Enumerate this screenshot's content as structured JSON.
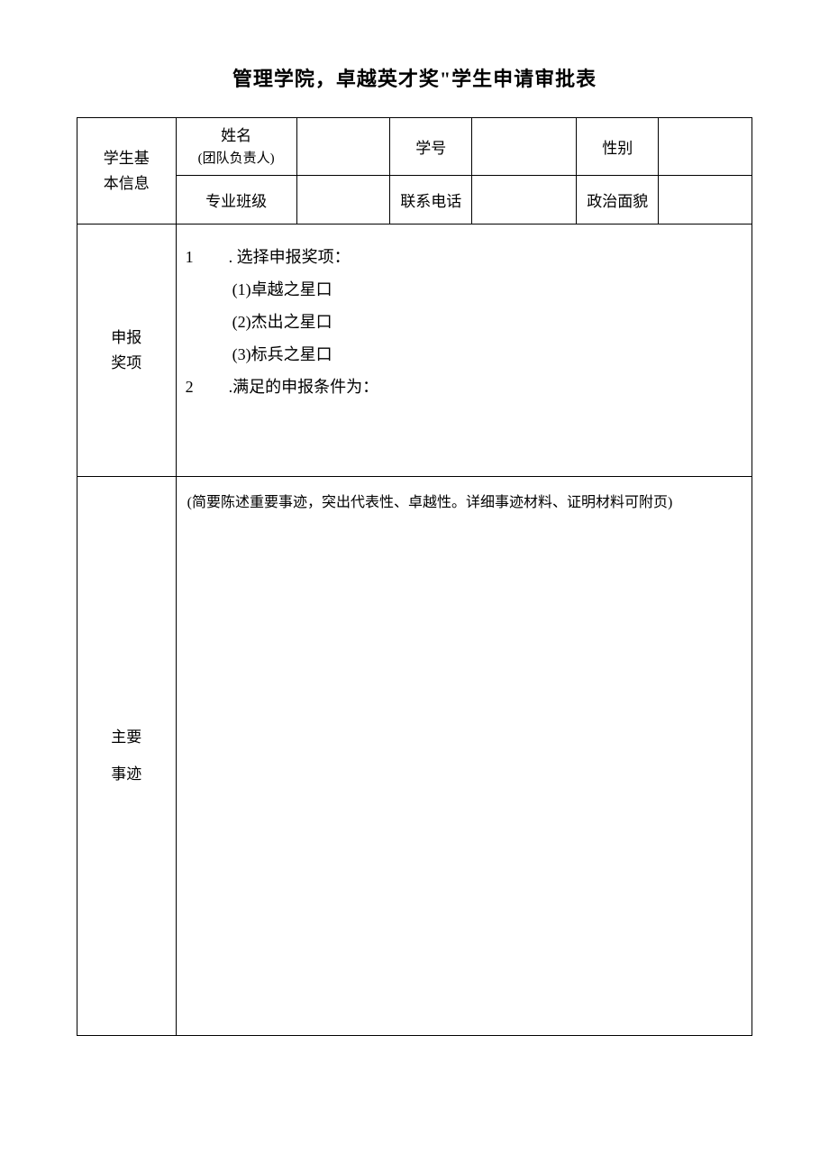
{
  "document": {
    "title": "管理学院，卓越英才奖\"学生申请审批表",
    "section1": {
      "label_line1": "学生基",
      "label_line2": "本信息",
      "row1": {
        "name_label": "姓名",
        "name_sub": "(团队负责人)",
        "name_value": "",
        "student_id_label": "学号",
        "student_id_value": "",
        "gender_label": "性别",
        "gender_value": ""
      },
      "row2": {
        "class_label": "专业班级",
        "class_value": "",
        "phone_label": "联系电话",
        "phone_value": "",
        "political_label": "政治面貌",
        "political_value": ""
      }
    },
    "section2": {
      "label_line1": "申报",
      "label_line2": "奖项",
      "item1_num": "1",
      "item1_text": ". 选择申报奖项：",
      "option1": "(1)卓越之星口",
      "option2": "(2)杰出之星口",
      "option3": "(3)标兵之星口",
      "item2_num": "2",
      "item2_text": ".满足的申报条件为："
    },
    "section3": {
      "label_line1": "主要",
      "label_line2": "事迹",
      "hint": "(简要陈述重要事迹，突出代表性、卓越性。详细事迹材料、证明材料可附页)"
    }
  },
  "style": {
    "text_color": "#000000",
    "background_color": "#ffffff",
    "border_color": "#000000",
    "title_fontsize": 22,
    "body_fontsize": 17
  }
}
